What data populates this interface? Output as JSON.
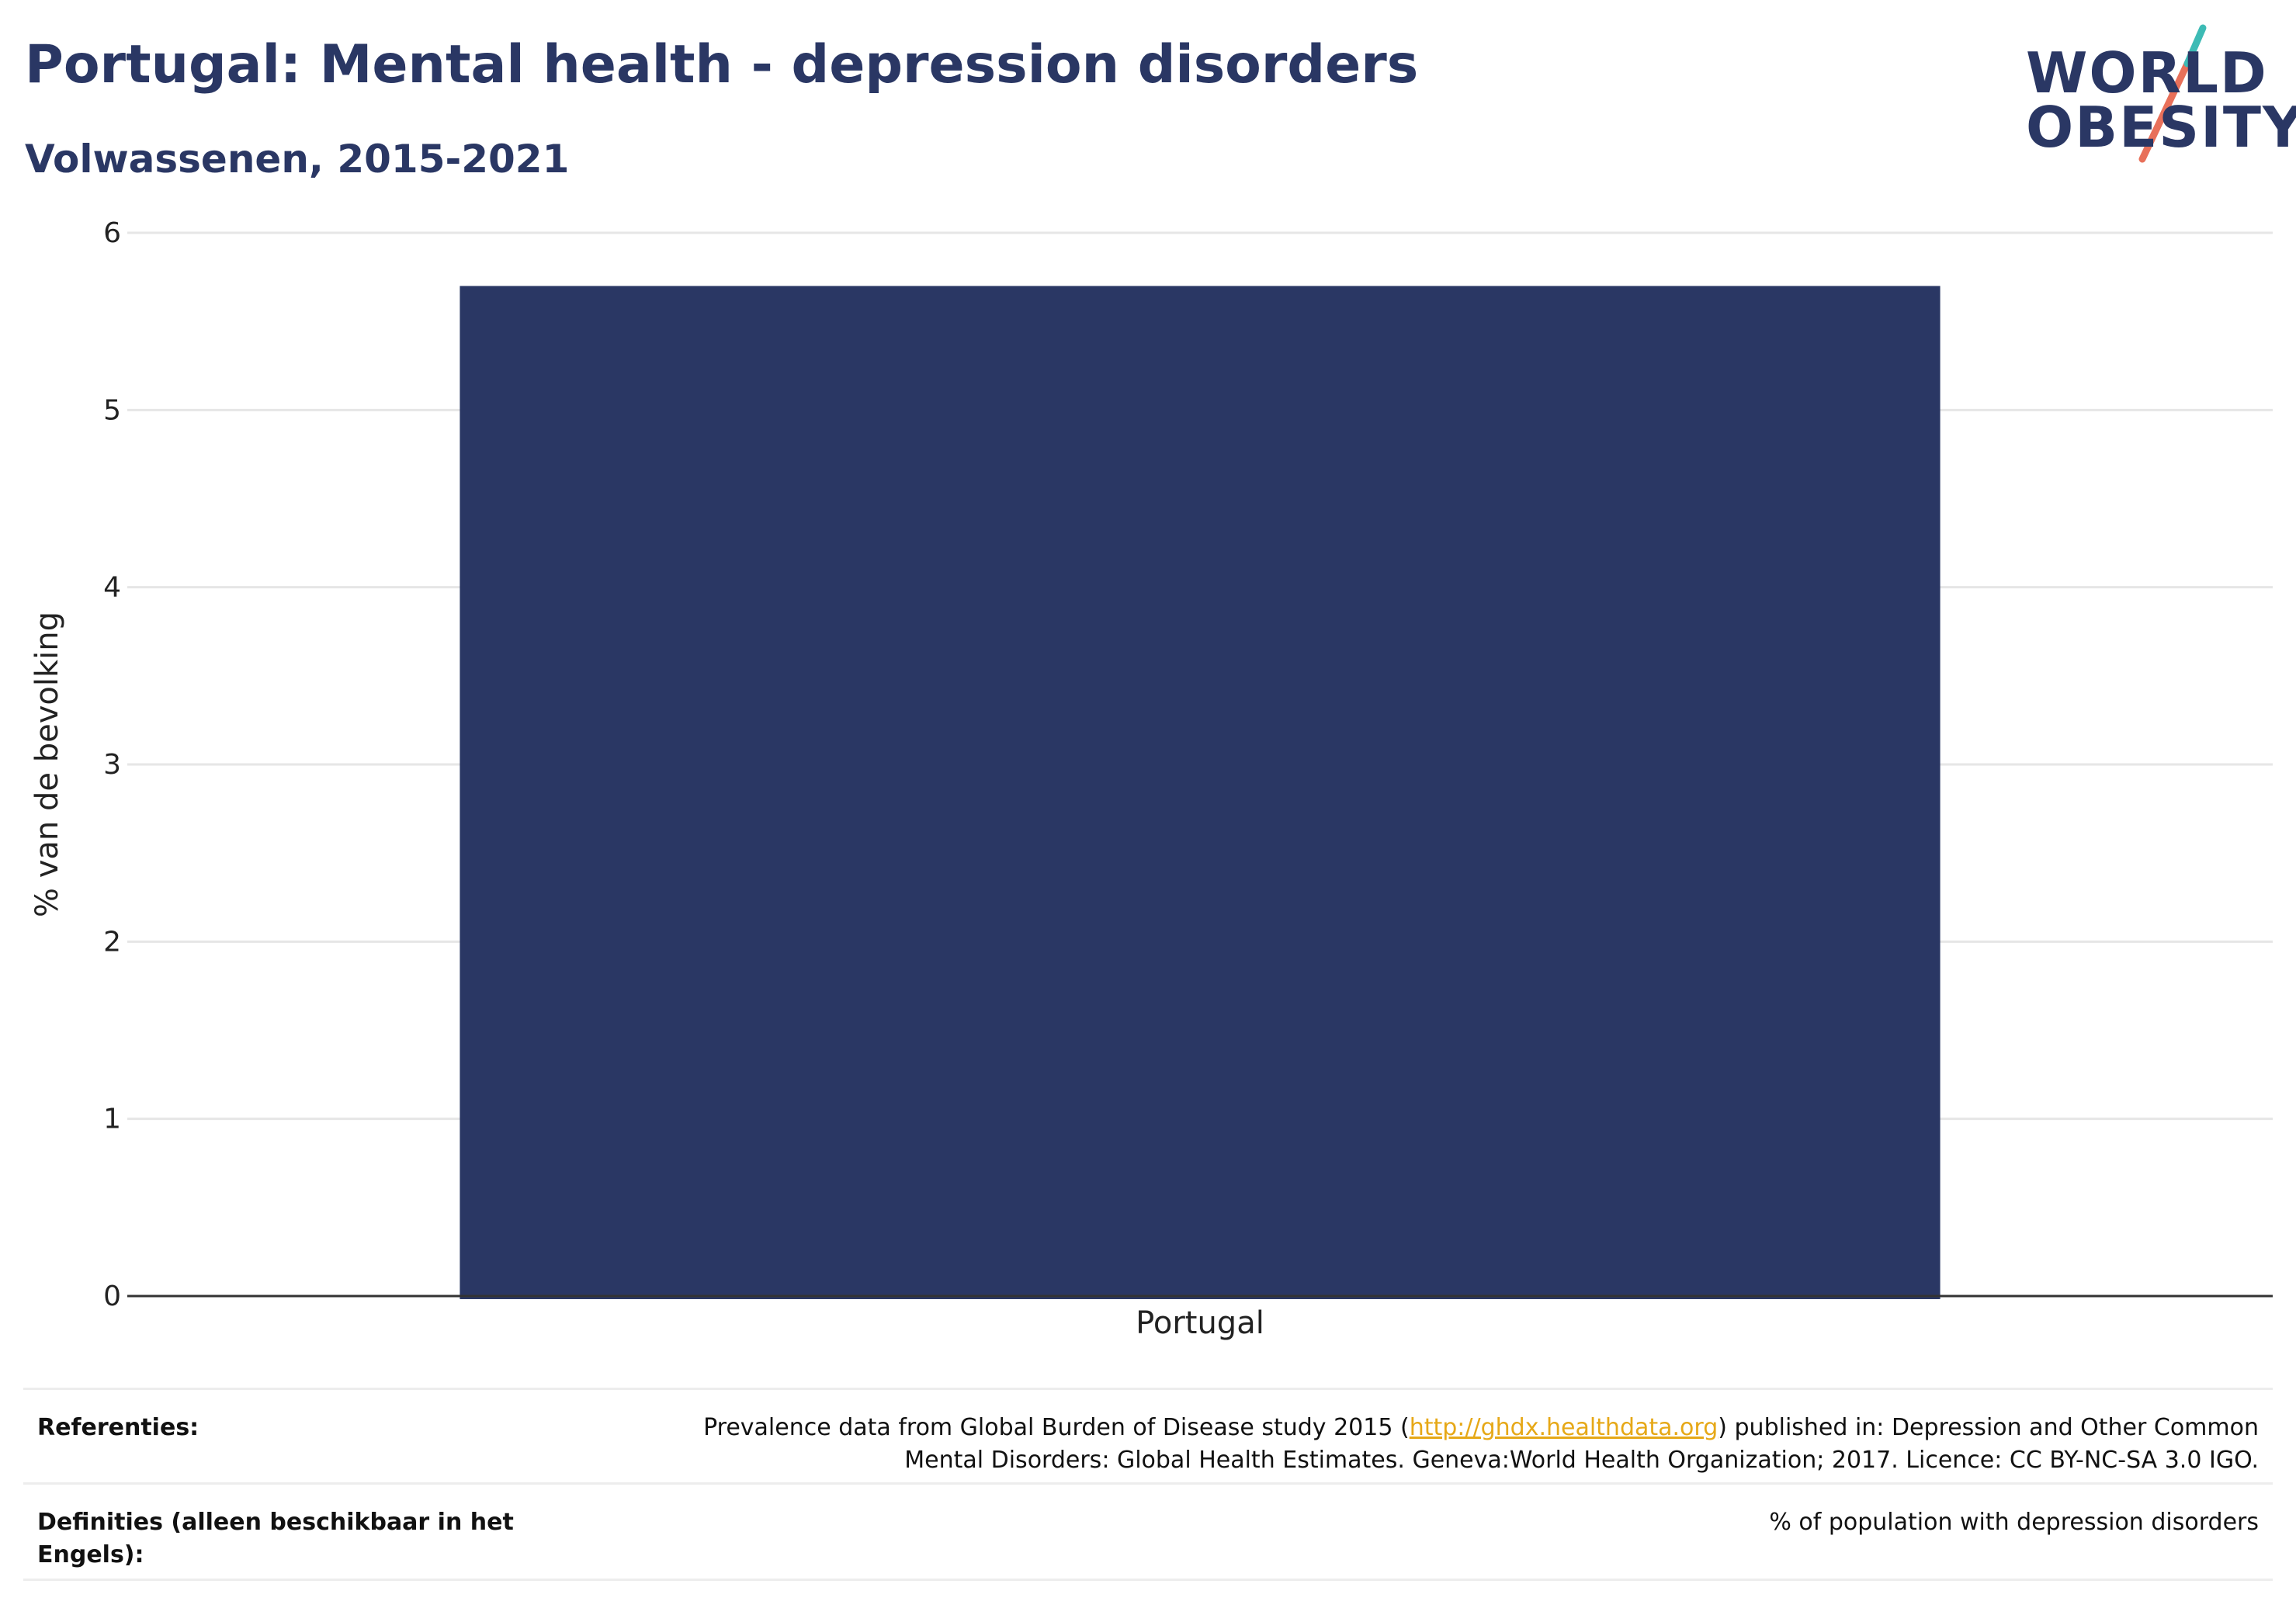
{
  "header": {
    "title": "Portugal: Mental health - depression disorders",
    "subtitle": "Volwassenen, 2015-2021"
  },
  "logo": {
    "line1": "WORLD",
    "line2": "OBESITY",
    "accent_teal": "#3dbbb5",
    "accent_coral": "#e8705a"
  },
  "colors": {
    "bar": "#2a3764",
    "text": "#2a3764",
    "grid": "#e6e6e6",
    "link": "#e6a817"
  },
  "chart_data": {
    "type": "bar",
    "title": "Portugal: Mental health - depression disorders",
    "subtitle": "Volwassenen, 2015-2021",
    "categories": [
      "Portugal"
    ],
    "values": [
      5.7
    ],
    "xlabel": "",
    "ylabel": "% van de bevolking",
    "ylim": [
      0,
      6
    ],
    "yticks": [
      0,
      1,
      2,
      3,
      4,
      5,
      6
    ],
    "grid": true,
    "legend": "none"
  },
  "references": {
    "ref_label": "Referenties:",
    "ref_text_before": "Prevalence data from Global Burden of Disease study 2015 (",
    "ref_link": "http://ghdx.healthdata.org",
    "ref_text_after": ") published in: Depression and Other Common",
    "ref_text_line2": "Mental Disorders: Global Health Estimates. Geneva:World Health Organization; 2017. Licence: CC BY-NC-SA 3.0 IGO.",
    "def_label": "Definities (alleen beschikbaar in het Engels):",
    "def_text": "% of population with depression disorders"
  }
}
